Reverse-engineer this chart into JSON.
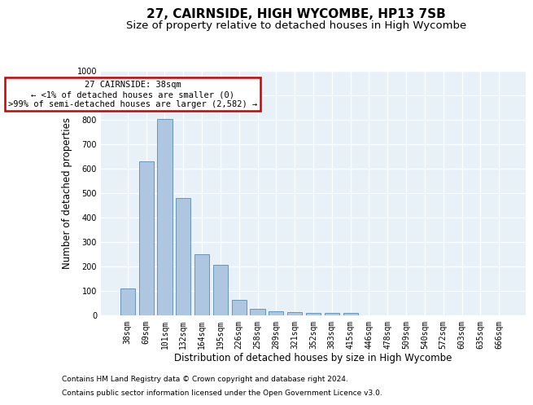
{
  "title": "27, CAIRNSIDE, HIGH WYCOMBE, HP13 7SB",
  "subtitle": "Size of property relative to detached houses in High Wycombe",
  "xlabel": "Distribution of detached houses by size in High Wycombe",
  "ylabel": "Number of detached properties",
  "footnote1": "Contains HM Land Registry data © Crown copyright and database right 2024.",
  "footnote2": "Contains public sector information licensed under the Open Government Licence v3.0.",
  "categories": [
    "38sqm",
    "69sqm",
    "101sqm",
    "132sqm",
    "164sqm",
    "195sqm",
    "226sqm",
    "258sqm",
    "289sqm",
    "321sqm",
    "352sqm",
    "383sqm",
    "415sqm",
    "446sqm",
    "478sqm",
    "509sqm",
    "540sqm",
    "572sqm",
    "603sqm",
    "635sqm",
    "666sqm"
  ],
  "values": [
    110,
    630,
    805,
    480,
    250,
    207,
    62,
    27,
    18,
    13,
    10,
    10,
    10,
    0,
    0,
    0,
    0,
    0,
    0,
    0,
    0
  ],
  "bar_color": "#aec6e0",
  "bar_edge_color": "#5a8ab5",
  "annotation_text": "27 CAIRNSIDE: 38sqm\n← <1% of detached houses are smaller (0)\n>99% of semi-detached houses are larger (2,582) →",
  "annotation_box_color": "#ffffff",
  "annotation_box_edge_color": "#cc0000",
  "ylim": [
    0,
    1000
  ],
  "yticks": [
    0,
    100,
    200,
    300,
    400,
    500,
    600,
    700,
    800,
    900,
    1000
  ],
  "background_color": "#e8f0f8",
  "grid_color": "#ffffff",
  "title_fontsize": 11,
  "subtitle_fontsize": 9.5,
  "axis_label_fontsize": 8.5,
  "tick_fontsize": 7,
  "annotation_fontsize": 7.5,
  "footnote_fontsize": 6.5
}
